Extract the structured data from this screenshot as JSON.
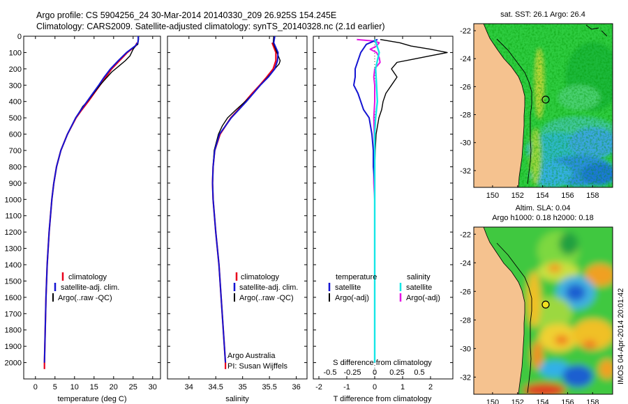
{
  "header": {
    "line1": "Argo profile: CS 5904256_24 30-Mar-2014 20140330_209 26.925S 154.245E",
    "line2": "Climatology: CARS2009. Satellite-adjusted climatology: synTS_20140328.nc (2.1d earlier)"
  },
  "colors": {
    "climatology": "#e8001c",
    "satellite": "#1414d2",
    "argo": "#000000",
    "salinity_satellite": "#14e6e6",
    "salinity_argo": "#e414e4",
    "land": "#f5c28f"
  },
  "panels": {
    "temperature": {
      "xlabel": "temperature (deg C)",
      "legend": [
        "climatology",
        "satellite-adj. clim.",
        "Argo(..raw -QC)"
      ]
    },
    "salinity": {
      "xlabel": "salinity",
      "legend": [
        "climatology",
        "satellite-adj. clim.",
        "Argo(..raw -QC)"
      ],
      "credit1": "Argo Australia",
      "credit2": "PI: Susan Wijffels"
    },
    "difference": {
      "xlabel": "T difference from climatology",
      "top_label": "S difference from climatology",
      "legend_temp_title": "temperature",
      "legend_sal_title": "salinity",
      "legend_temp": [
        "satellite",
        "Argo(-adj)"
      ],
      "legend_sal": [
        "satellite",
        "Argo(-adj)"
      ]
    },
    "sst_map": {
      "title": "sat. SST: 26.1  Argo: 26.4"
    },
    "sla_map": {
      "title1": "Altim. SLA: 0.04",
      "title2": "Argo h1000: 0.18 h2000: 0.18"
    }
  },
  "stamp": "IMOS 04-Apr-2014 20:01:42",
  "chart_data": [
    {
      "type": "line",
      "name": "temperature profile",
      "xlabel": "temperature (deg C)",
      "ylabel": "",
      "xlim": [
        -3,
        32
      ],
      "ylim": [
        2100,
        0
      ],
      "xticks": [
        0,
        5,
        10,
        15,
        20,
        25,
        30
      ],
      "yticks": [
        0,
        100,
        200,
        300,
        400,
        500,
        600,
        700,
        800,
        900,
        1000,
        1100,
        1200,
        1300,
        1400,
        1500,
        1600,
        1700,
        1800,
        1900,
        2000
      ],
      "series": [
        {
          "name": "climatology",
          "depth": [
            40,
            60,
            100,
            150,
            200,
            250,
            300,
            350,
            400,
            450,
            500,
            600,
            700,
            800,
            900,
            1000,
            1200,
            1400,
            1600,
            1800,
            2000,
            2040
          ],
          "values": [
            26.0,
            25.6,
            23.5,
            21.5,
            19.5,
            18.0,
            16.5,
            15.0,
            13.5,
            11.9,
            10.4,
            8.2,
            6.5,
            5.4,
            4.7,
            4.2,
            3.5,
            3.0,
            2.7,
            2.5,
            2.3,
            2.3
          ]
        },
        {
          "name": "satellite-adj. clim.",
          "depth": [
            0,
            20,
            40,
            60,
            100,
            150,
            200,
            250,
            300,
            350,
            400,
            450,
            500,
            600,
            700,
            800,
            900,
            1000,
            1200,
            1400,
            1600,
            1800,
            2000
          ],
          "values": [
            26.3,
            26.3,
            26.2,
            25.5,
            23.3,
            21.2,
            19.2,
            17.6,
            16.2,
            14.7,
            13.2,
            11.7,
            10.3,
            8.2,
            6.5,
            5.4,
            4.7,
            4.2,
            3.5,
            3.0,
            2.7,
            2.5,
            2.3
          ]
        },
        {
          "name": "Argo(..raw -QC)",
          "depth": [
            0,
            20,
            50,
            60,
            80,
            120,
            150,
            180,
            220,
            260,
            300,
            350,
            400,
            430,
            450,
            500,
            600,
            700,
            800,
            900,
            1000,
            1200,
            1400,
            1600,
            1800,
            2000
          ],
          "values": [
            26.4,
            26.4,
            26.2,
            25.6,
            25.0,
            24.2,
            23.0,
            21.5,
            19.5,
            18.0,
            16.5,
            14.9,
            13.3,
            12.1,
            11.6,
            10.3,
            8.2,
            6.5,
            5.4,
            4.7,
            4.2,
            3.5,
            3.0,
            2.7,
            2.5,
            2.3
          ]
        }
      ]
    },
    {
      "type": "line",
      "name": "salinity profile",
      "xlabel": "salinity",
      "ylabel": "",
      "xlim": [
        33.6,
        36.2
      ],
      "ylim": [
        2100,
        0
      ],
      "xticks": [
        34,
        34.5,
        35,
        35.5,
        36
      ],
      "series": [
        {
          "name": "climatology",
          "depth": [
            40,
            100,
            150,
            200,
            250,
            300,
            350,
            400,
            450,
            500,
            600,
            700,
            800,
            900,
            1000,
            1200,
            1400,
            1600,
            1800,
            2000,
            2040
          ],
          "values": [
            35.55,
            35.62,
            35.62,
            35.57,
            35.45,
            35.32,
            35.18,
            35.05,
            34.92,
            34.78,
            34.58,
            34.48,
            34.45,
            34.44,
            34.45,
            34.5,
            34.56,
            34.6,
            34.64,
            34.68,
            34.68
          ]
        },
        {
          "name": "satellite-adj. clim.",
          "depth": [
            0,
            40,
            100,
            150,
            200,
            250,
            300,
            350,
            400,
            450,
            500,
            600,
            700,
            800,
            900,
            1000,
            1200,
            1400,
            1600,
            1800,
            2000
          ],
          "values": [
            35.6,
            35.58,
            35.66,
            35.65,
            35.6,
            35.48,
            35.33,
            35.2,
            35.07,
            34.93,
            34.79,
            34.57,
            34.48,
            34.45,
            34.44,
            34.45,
            34.5,
            34.56,
            34.6,
            34.64,
            34.68
          ]
        },
        {
          "name": "Argo(..raw -QC)",
          "depth": [
            0,
            40,
            100,
            150,
            170,
            200,
            250,
            300,
            350,
            400,
            450,
            500,
            550,
            600,
            700,
            800,
            900,
            1000,
            1200,
            1400,
            1600,
            1800,
            2000
          ],
          "values": [
            35.58,
            35.57,
            35.64,
            35.7,
            35.68,
            35.6,
            35.47,
            35.33,
            35.2,
            35.05,
            34.88,
            34.72,
            34.62,
            34.55,
            34.47,
            34.45,
            34.44,
            34.45,
            34.5,
            34.56,
            34.6,
            34.64,
            34.68
          ]
        }
      ]
    },
    {
      "type": "line",
      "name": "difference from climatology",
      "xlabel": "T difference from climatology",
      "top_label": "S difference from climatology",
      "xlim": [
        -2.2,
        2.8
      ],
      "xticks": [
        -2,
        -1,
        0,
        1,
        2
      ],
      "top_ticks": [
        -0.5,
        -0.25,
        0,
        0.25,
        0.5
      ],
      "top_ticks_in_T_units": [
        -1.6,
        -0.8,
        0,
        0.8,
        1.6
      ],
      "ylim": [
        2100,
        0
      ],
      "series": [
        {
          "name": "temperature satellite",
          "depth": [
            20,
            50,
            100,
            150,
            200,
            250,
            300,
            350,
            400,
            450,
            500,
            600,
            700,
            800,
            900,
            1000,
            1200,
            1500,
            2000
          ],
          "values": [
            0.1,
            -0.3,
            -0.5,
            -0.6,
            -0.7,
            -0.7,
            -0.75,
            -0.6,
            -0.5,
            -0.4,
            -0.2,
            -0.1,
            -0.05,
            -0.05,
            0.0,
            0.0,
            0.0,
            0.0,
            0.0
          ]
        },
        {
          "name": "temperature Argo(-adj)",
          "depth": [
            20,
            40,
            60,
            80,
            100,
            120,
            140,
            160,
            180,
            200,
            250,
            300,
            350,
            400,
            450,
            500,
            550,
            600,
            700,
            800,
            1000,
            1500,
            2000
          ],
          "values": [
            0.2,
            0.9,
            1.3,
            2.0,
            2.6,
            2.0,
            1.4,
            0.8,
            0.7,
            0.6,
            0.8,
            0.6,
            0.4,
            0.3,
            0.25,
            0.15,
            0.1,
            0.05,
            0.02,
            0.0,
            0.0,
            0.0,
            0.0
          ]
        },
        {
          "name": "salinity satellite",
          "depth": [
            20,
            50,
            100,
            150,
            200,
            300,
            400,
            500,
            600,
            700,
            800,
            1000,
            1500,
            2000
          ],
          "values": [
            0.0,
            0.02,
            0.05,
            0.03,
            0.01,
            0.02,
            0.03,
            0.01,
            0.0,
            0.0,
            0.0,
            0.0,
            0.0,
            0.0
          ]
        },
        {
          "name": "salinity Argo(-adj)",
          "depth": [
            20,
            30,
            40,
            60,
            80,
            100,
            130,
            160,
            200,
            250,
            300,
            400,
            500,
            700,
            800,
            900,
            1000,
            1500,
            2000
          ],
          "values": [
            -0.2,
            0.0,
            0.05,
            0.02,
            -0.05,
            0.02,
            0.05,
            0.06,
            0.0,
            -0.01,
            0.0,
            0.0,
            -0.01,
            0.0,
            -0.01,
            -0.01,
            0.0,
            0.0,
            0.0
          ]
        }
      ]
    },
    {
      "type": "heatmap",
      "name": "sst map",
      "title": "sat. SST: 26.1  Argo: 26.4",
      "xticks": [
        150,
        152,
        154,
        156,
        158
      ],
      "yticks": [
        -22,
        -24,
        -26,
        -28,
        -30,
        -32
      ],
      "xlim": [
        148.5,
        159.6
      ],
      "ylim": [
        -33.2,
        -21.5
      ],
      "marker": {
        "lon": 154.245,
        "lat": -26.925
      }
    },
    {
      "type": "heatmap",
      "name": "sla map",
      "title": "Altim. SLA: 0.04",
      "subtitle": "Argo h1000: 0.18 h2000: 0.18",
      "xticks": [
        150,
        152,
        154,
        156,
        158
      ],
      "yticks": [
        -22,
        -24,
        -26,
        -28,
        -30,
        -32
      ],
      "xlim": [
        148.5,
        159.6
      ],
      "ylim": [
        -33.2,
        -21.5
      ],
      "marker": {
        "lon": 154.245,
        "lat": -26.925
      }
    }
  ]
}
